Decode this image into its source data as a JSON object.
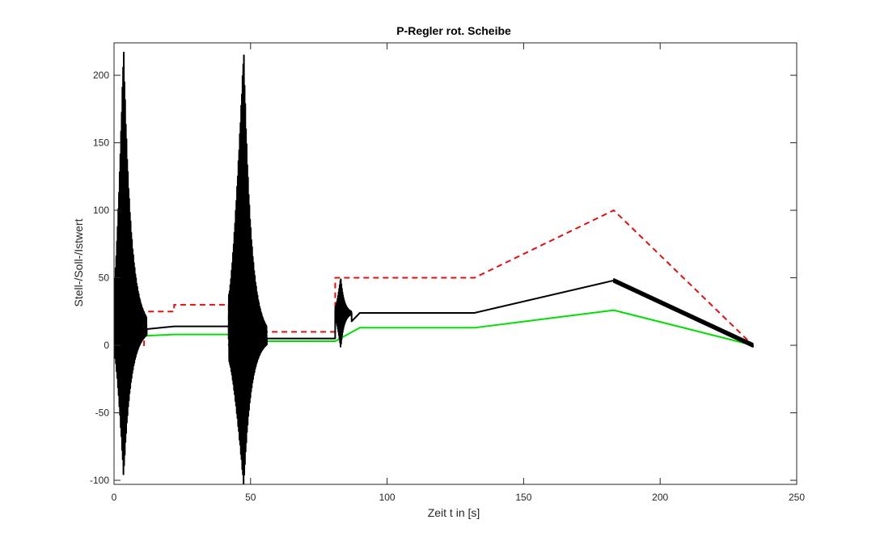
{
  "chart_data": {
    "type": "line",
    "title": "P-Regler rot. Scheibe",
    "xlabel": "Zeit t in [s]",
    "ylabel": "Stell-/Soll-/Istwert",
    "xlim": [
      0,
      250
    ],
    "ylim": [
      -103,
      224
    ],
    "xticks": [
      0,
      50,
      100,
      150,
      200,
      250
    ],
    "yticks": [
      -100,
      -50,
      0,
      50,
      100,
      150,
      200
    ],
    "grid": false,
    "series": [
      {
        "role": "setpoint",
        "color": "#e01010",
        "style": "dashed",
        "x": [
          0,
          11,
          11,
          22,
          22,
          42,
          42,
          55,
          55,
          81,
          81,
          132,
          183,
          234
        ],
        "y": [
          0,
          0,
          25,
          25,
          30,
          30,
          0,
          0,
          10,
          10,
          50,
          50,
          100,
          0
        ]
      },
      {
        "role": "output",
        "color": "#00e000",
        "style": "solid",
        "x": [
          0,
          11,
          22,
          42,
          55,
          81,
          90,
          132,
          183,
          234
        ],
        "y": [
          0,
          7,
          8,
          8,
          3,
          3,
          13,
          13,
          26,
          0
        ]
      },
      {
        "role": "control",
        "color": "#000000",
        "style": "solid",
        "x": [
          0,
          12,
          22,
          42,
          56,
          81,
          90,
          132,
          183,
          234
        ],
        "y": [
          0,
          12,
          14,
          14,
          5,
          5,
          24,
          24,
          48,
          0
        ],
        "oscillations": [
          {
            "t0": 0,
            "t_peak": 3.5,
            "t1": 12,
            "base": 12,
            "amp_up": 210,
            "amp_down": 110,
            "freq_hz": 4
          },
          {
            "t0": 42,
            "t_peak": 47.5,
            "t1": 56,
            "base": 5,
            "amp_up": 215,
            "amp_down": 110,
            "freq_hz": 4
          },
          {
            "t0": 81,
            "t_peak": 83,
            "t1": 87,
            "base": 24,
            "amp_up": 27,
            "amp_down": 27,
            "freq_hz": 5
          }
        ]
      }
    ]
  }
}
